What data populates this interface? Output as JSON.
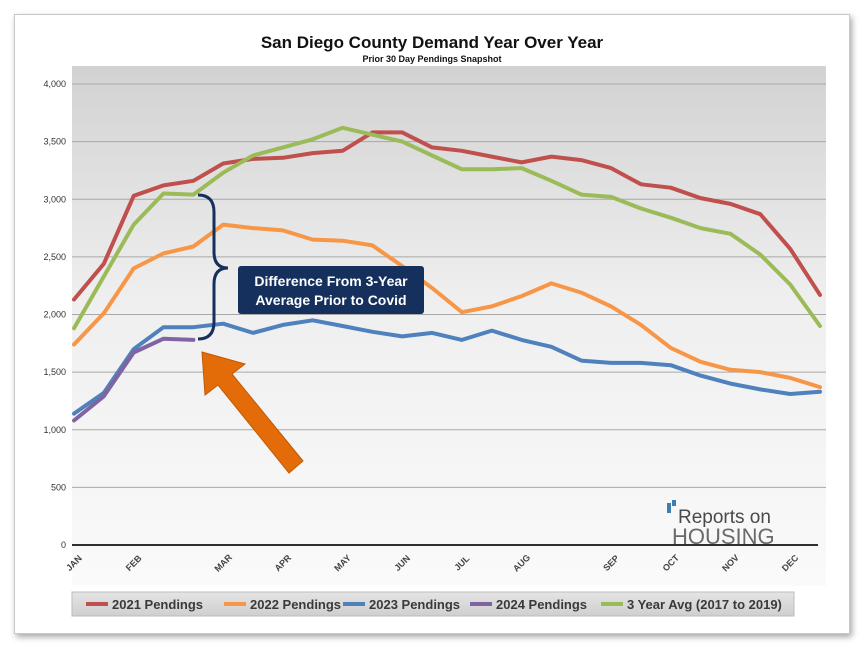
{
  "chart_data": {
    "type": "line",
    "title": "San Diego County Demand Year Over Year",
    "subtitle": "Prior 30 Day Pendings Snapshot",
    "ylim": [
      0,
      4000
    ],
    "yticks": [
      "0",
      "500",
      "1,000",
      "1,500",
      "2,000",
      "2,500",
      "3,000",
      "3,500",
      "4,000"
    ],
    "ytick_values": [
      0,
      500,
      1000,
      1500,
      2000,
      2500,
      3000,
      3500,
      4000
    ],
    "months": [
      "JAN",
      "FEB",
      "MAR",
      "APR",
      "MAY",
      "JUN",
      "JUL",
      "AUG",
      "SEP",
      "OCT",
      "NOV",
      "DEC"
    ],
    "month_index": [
      0,
      2,
      5,
      7,
      9,
      11,
      13,
      15,
      18,
      20,
      22,
      24
    ],
    "grid": true,
    "legend_position": "bottom",
    "series": [
      {
        "name": "2021 Pendings",
        "color": "#c0504d",
        "values": [
          2130,
          2440,
          3030,
          3120,
          3160,
          3310,
          3350,
          3360,
          3400,
          3420,
          3580,
          3580,
          3450,
          3420,
          3370,
          3320,
          3370,
          3340,
          3270,
          3130,
          3100,
          3010,
          2960,
          2870,
          2570,
          2170
        ]
      },
      {
        "name": "2022 Pendings",
        "color": "#f79646",
        "values": [
          1740,
          2010,
          2400,
          2530,
          2590,
          2780,
          2750,
          2730,
          2650,
          2640,
          2600,
          2420,
          2230,
          2020,
          2070,
          2160,
          2270,
          2190,
          2070,
          1910,
          1710,
          1590,
          1520,
          1500,
          1450,
          1370
        ]
      },
      {
        "name": "2023 Pendings",
        "color": "#4f81bd",
        "values": [
          1140,
          1320,
          1700,
          1890,
          1890,
          1920,
          1840,
          1910,
          1950,
          1900,
          1850,
          1810,
          1840,
          1780,
          1860,
          1780,
          1720,
          1600,
          1580,
          1580,
          1560,
          1470,
          1400,
          1350,
          1310,
          1330
        ]
      },
      {
        "name": "2024 Pendings",
        "color": "#8064a2",
        "values": [
          1080,
          1290,
          1670,
          1790,
          1780
        ]
      },
      {
        "name": "3 Year Avg (2017 to 2019)",
        "color": "#9bbb59",
        "values": [
          1880,
          2330,
          2780,
          3050,
          3040,
          3230,
          3380,
          3450,
          3520,
          3620,
          3560,
          3500,
          3380,
          3260,
          3260,
          3270,
          3160,
          3040,
          3020,
          2920,
          2840,
          2750,
          2700,
          2520,
          2260,
          1900
        ]
      }
    ],
    "annotation": {
      "text_line1": "Difference From 3-Year",
      "text_line2": "Average Prior to Covid",
      "box_color": "#15305c",
      "arrow_color": "#e36c09"
    }
  },
  "logo": {
    "line1": "Reports on",
    "line2": "HOUSING"
  }
}
